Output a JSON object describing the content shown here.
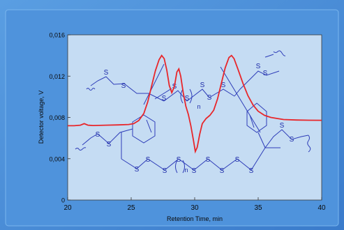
{
  "chart_data": {
    "type": "line",
    "xlabel": "Retention Time, min",
    "ylabel": "Detector voltage, V",
    "xlim": [
      20,
      40
    ],
    "ylim": [
      0,
      0.016
    ],
    "x_ticks": [
      20,
      25,
      30,
      35,
      40
    ],
    "x_tick_labels": [
      "20",
      "25",
      "30",
      "35",
      "40"
    ],
    "y_ticks": [
      0,
      0.004,
      0.008,
      0.012,
      0.016
    ],
    "y_tick_labels": [
      "0",
      "0,004",
      "0,008",
      "0,012",
      "0,016"
    ],
    "grid": false,
    "legend": "none",
    "series": [
      {
        "color": "#e8262a",
        "points": [
          [
            20.0,
            0.0072
          ],
          [
            20.5,
            0.0072
          ],
          [
            21.0,
            0.00725
          ],
          [
            21.3,
            0.0074
          ],
          [
            21.6,
            0.00725
          ],
          [
            22.0,
            0.00722
          ],
          [
            23.0,
            0.00725
          ],
          [
            24.0,
            0.00728
          ],
          [
            24.8,
            0.00732
          ],
          [
            25.2,
            0.0074
          ],
          [
            25.6,
            0.0077
          ],
          [
            26.0,
            0.0084
          ],
          [
            26.3,
            0.0095
          ],
          [
            26.6,
            0.011
          ],
          [
            26.9,
            0.0125
          ],
          [
            27.2,
            0.0136
          ],
          [
            27.4,
            0.014
          ],
          [
            27.6,
            0.0137
          ],
          [
            27.8,
            0.0126
          ],
          [
            28.0,
            0.0111
          ],
          [
            28.2,
            0.0104
          ],
          [
            28.4,
            0.011
          ],
          [
            28.6,
            0.0124
          ],
          [
            28.75,
            0.0127
          ],
          [
            28.9,
            0.012
          ],
          [
            29.1,
            0.0104
          ],
          [
            29.3,
            0.0091
          ],
          [
            29.5,
            0.0083
          ],
          [
            29.7,
            0.0072
          ],
          [
            29.9,
            0.0058
          ],
          [
            30.05,
            0.0047
          ],
          [
            30.2,
            0.0051
          ],
          [
            30.4,
            0.0064
          ],
          [
            30.6,
            0.0074
          ],
          [
            30.9,
            0.0079
          ],
          [
            31.2,
            0.0082
          ],
          [
            31.5,
            0.0087
          ],
          [
            31.8,
            0.0098
          ],
          [
            32.1,
            0.0113
          ],
          [
            32.4,
            0.0128
          ],
          [
            32.7,
            0.0138
          ],
          [
            32.9,
            0.014
          ],
          [
            33.1,
            0.0137
          ],
          [
            33.4,
            0.0127
          ],
          [
            33.8,
            0.0113
          ],
          [
            34.2,
            0.0101
          ],
          [
            34.6,
            0.0092
          ],
          [
            35.0,
            0.0086
          ],
          [
            35.5,
            0.0082
          ],
          [
            36.0,
            0.008
          ],
          [
            37.0,
            0.0078
          ],
          [
            38.0,
            0.00775
          ],
          [
            39.0,
            0.00773
          ],
          [
            40.0,
            0.00772
          ]
        ]
      }
    ],
    "annotations": [
      {
        "type": "structure-label",
        "text": "S"
      },
      {
        "type": "structure-label",
        "text": "S"
      },
      {
        "type": "structure-label",
        "text": "S"
      },
      {
        "type": "structure-label",
        "text": "S"
      },
      {
        "type": "structure-label",
        "text": "S"
      },
      {
        "type": "structure-label",
        "text": "S"
      },
      {
        "type": "structure-label",
        "text": "S"
      },
      {
        "type": "structure-label",
        "text": "S"
      },
      {
        "type": "structure-label",
        "text": "S"
      },
      {
        "type": "structure-label",
        "text": "S"
      },
      {
        "type": "structure-label",
        "text": "S"
      },
      {
        "type": "structure-label",
        "text": "S"
      },
      {
        "type": "structure-label",
        "text": "S"
      },
      {
        "type": "structure-label",
        "text": "S"
      },
      {
        "type": "structure-label",
        "text": "S"
      },
      {
        "type": "structure-label",
        "text": "S"
      },
      {
        "type": "structure-label",
        "text": "S"
      },
      {
        "type": "structure-label",
        "text": "S"
      },
      {
        "type": "structure-label",
        "text": "S"
      },
      {
        "type": "structure-label",
        "text": "S"
      },
      {
        "type": "structure-label",
        "text": "S"
      },
      {
        "type": "structure-label",
        "text": "S"
      },
      {
        "type": "structure-label",
        "text": "S"
      },
      {
        "type": "repeat-label",
        "text": "n"
      },
      {
        "type": "repeat-label",
        "text": "n"
      }
    ]
  },
  "colors": {
    "frame_outer": "#3f82cf",
    "frame_inner": "#5ea2e4",
    "plot_background": "#c5dcf3",
    "curve": "#e8262a",
    "structure": "#2e3db8"
  }
}
